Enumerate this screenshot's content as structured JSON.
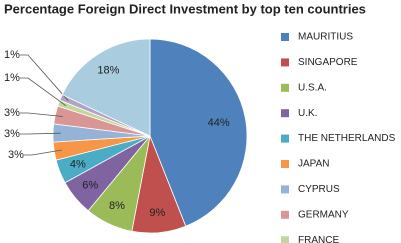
{
  "chart_data": {
    "type": "pie",
    "title": "Percentage Foreign Direct Investment by top ten countries",
    "categories": [
      "MAURITIUS",
      "SINGAPORE",
      "U.S.A.",
      "U.K.",
      "THE NETHERLANDS",
      "JAPAN",
      "CYPRUS",
      "GERMANY",
      "FRANCE",
      null,
      null
    ],
    "values": [
      44,
      9,
      8,
      6,
      4,
      3,
      3,
      3,
      1,
      1,
      18
    ],
    "value_labels": [
      "44%",
      "9%",
      "8%",
      "6%",
      "4%",
      "3%",
      "3%",
      "3%",
      "1%",
      "1%",
      "18%"
    ],
    "colors": [
      "#4F81BD",
      "#C0504D",
      "#9BBB59",
      "#8064A2",
      "#4BACC6",
      "#F79646",
      "#95B3D7",
      "#D99694",
      "#C3D69B",
      "#B3A2C7",
      "#A9CCDF"
    ],
    "legend": "right"
  }
}
